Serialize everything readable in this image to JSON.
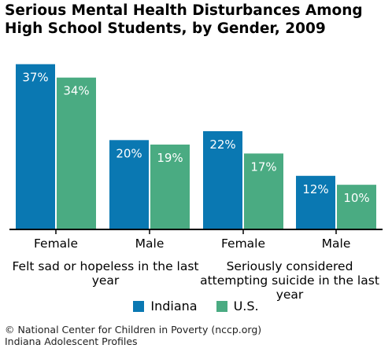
{
  "chart_data": {
    "type": "bar",
    "title": "Serious Mental Health Disturbances Among High School Students, by Gender, 2009",
    "categories": [
      "Female",
      "Male",
      "Female",
      "Male"
    ],
    "groups": [
      {
        "label": "Felt sad or hopeless in the last year",
        "categories": [
          "Female",
          "Male"
        ]
      },
      {
        "label": "Seriously considered attempting suicide in the last year",
        "categories": [
          "Female",
          "Male"
        ]
      }
    ],
    "series": [
      {
        "name": "Indiana",
        "values": [
          37,
          20,
          22,
          12
        ],
        "labels": [
          "37%",
          "20%",
          "22%",
          "12%"
        ],
        "color": "#0a78b2"
      },
      {
        "name": "U.S.",
        "values": [
          34,
          19,
          17,
          10
        ],
        "labels": [
          "34%",
          "19%",
          "17%",
          "10%"
        ],
        "color": "#4aab82"
      }
    ],
    "ylim": [
      0,
      38
    ],
    "grid": false,
    "legend": "bottom-center"
  },
  "footer": {
    "line1": "© National Center for Children in Poverty (nccp.org)",
    "line2": "Indiana Adolescent Profiles"
  }
}
